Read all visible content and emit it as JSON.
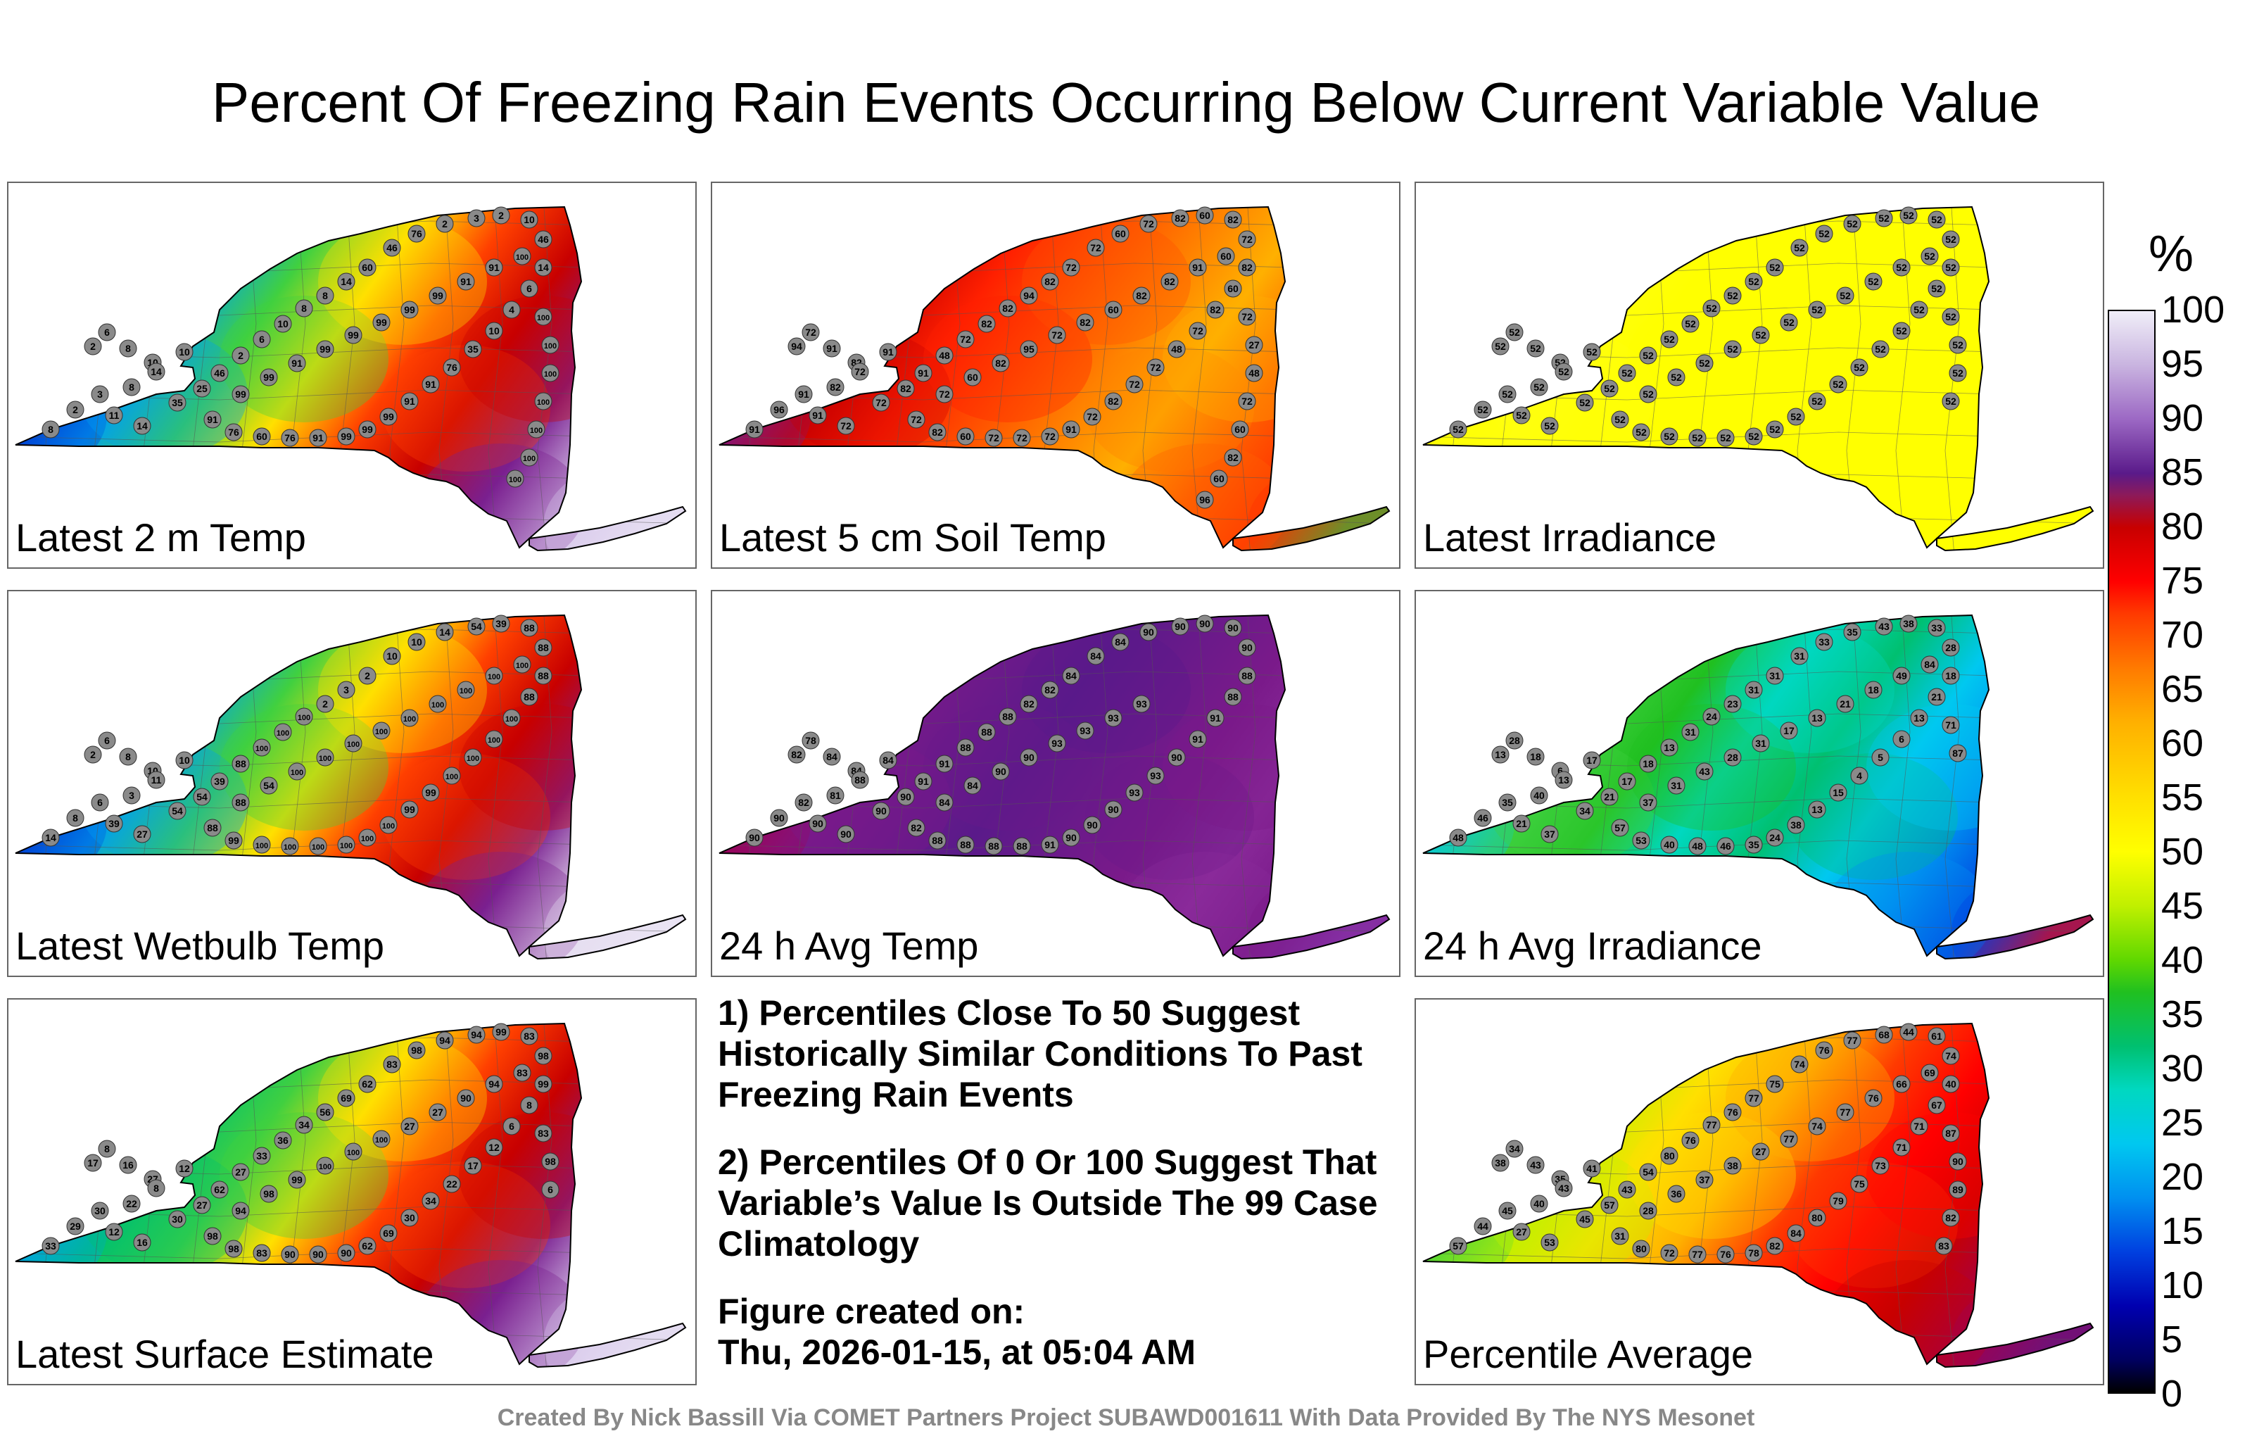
{
  "title": "Percent Of Freezing Rain Events Occurring Below Current Variable Value",
  "panels": [
    {
      "label": "Latest 2 m Temp",
      "fill_stops": [
        "#000070",
        "#0030d0",
        "#00a0f0",
        "#40d040",
        "#ffe000",
        "#ff4000",
        "#c80000",
        "#7a2090",
        "#d8c8ec",
        "#ece6f4"
      ],
      "stations": [
        "6",
        "2",
        "8",
        "10",
        "10",
        "14",
        "8",
        "3",
        "2",
        "8",
        "11",
        "14",
        "35",
        "25",
        "46",
        "2",
        "6",
        "10",
        "8",
        "8",
        "14",
        "60",
        "46",
        "76",
        "2",
        "3",
        "2",
        "10",
        "46",
        "14",
        "6",
        "4",
        "10",
        "35",
        "76",
        "91",
        "91",
        "99",
        "99",
        "99",
        "91",
        "76",
        "60",
        "76",
        "91",
        "99",
        "99",
        "91",
        "99",
        "99",
        "99",
        "99",
        "99",
        "91",
        "91",
        "100",
        "100",
        "100",
        "100",
        "100",
        "100",
        "100",
        "100"
      ]
    },
    {
      "label": "Latest 5 cm Soil Temp",
      "fill_stops": [
        "#5a1a8a",
        "#7a1a8a",
        "#c80000",
        "#ff2000",
        "#ff5000",
        "#ff8000",
        "#ffb000",
        "#ff6000",
        "#ff3000",
        "#20c040"
      ],
      "stations": [
        "72",
        "94",
        "91",
        "82",
        "91",
        "72",
        "82",
        "91",
        "96",
        "91",
        "91",
        "72",
        "72",
        "82",
        "91",
        "48",
        "72",
        "82",
        "82",
        "94",
        "82",
        "72",
        "72",
        "60",
        "72",
        "82",
        "60",
        "82",
        "72",
        "82",
        "60",
        "82",
        "72",
        "48",
        "72",
        "72",
        "82",
        "72",
        "91",
        "72",
        "72",
        "72",
        "60",
        "82",
        "72",
        "72",
        "60",
        "82",
        "95",
        "72",
        "82",
        "60",
        "82",
        "82",
        "91",
        "60",
        "72",
        "27",
        "48",
        "72",
        "60",
        "82",
        "60",
        "96"
      ]
    },
    {
      "label": "Latest Irradiance",
      "fill_stops": [
        "#ffff00",
        "#ffff00",
        "#ffff10",
        "#ffff00",
        "#ffff00",
        "#ffff00",
        "#ffff00",
        "#ffff00",
        "#ffff00",
        "#ffff00"
      ],
      "stations": [
        "52",
        "52",
        "52",
        "52",
        "52",
        "52",
        "52",
        "52",
        "52",
        "52",
        "52",
        "52",
        "52",
        "52",
        "52",
        "52",
        "52",
        "52",
        "52",
        "52",
        "52",
        "52",
        "52",
        "52",
        "52",
        "52",
        "52",
        "52",
        "52",
        "52",
        "52",
        "52",
        "52",
        "52",
        "52",
        "52",
        "52",
        "52",
        "52",
        "52",
        "52",
        "52",
        "52",
        "52",
        "52",
        "52",
        "52",
        "52",
        "52",
        "52",
        "52",
        "52",
        "52",
        "52",
        "52",
        "52",
        "52",
        "52",
        "52",
        "52"
      ]
    },
    {
      "label": "Latest Wetbulb Temp",
      "fill_stops": [
        "#000070",
        "#0030d0",
        "#00a0f0",
        "#40d040",
        "#ffe000",
        "#ff4000",
        "#c80000",
        "#7a2090",
        "#e4dcf0",
        "#ece6f4"
      ],
      "stations": [
        "6",
        "2",
        "8",
        "10",
        "10",
        "11",
        "3",
        "6",
        "8",
        "14",
        "39",
        "27",
        "54",
        "54",
        "39",
        "88",
        "100",
        "100",
        "100",
        "2",
        "3",
        "2",
        "10",
        "10",
        "14",
        "54",
        "39",
        "88",
        "88",
        "88",
        "88",
        "100",
        "100",
        "100",
        "100",
        "99",
        "99",
        "100",
        "100",
        "100",
        "100",
        "100",
        "100",
        "99",
        "88",
        "88",
        "54",
        "100",
        "100",
        "100",
        "100",
        "100",
        "100",
        "100",
        "100",
        "100"
      ]
    },
    {
      "label": "24 h Avg Temp",
      "fill_stops": [
        "#c80000",
        "#a00050",
        "#7a1a8a",
        "#6a1a8a",
        "#5a1a8a",
        "#6a1a8a",
        "#7a1a8a",
        "#8a2a9a",
        "#7a1a8a",
        "#8a3ab0"
      ],
      "stations": [
        "78",
        "82",
        "84",
        "84",
        "84",
        "88",
        "81",
        "82",
        "90",
        "90",
        "90",
        "90",
        "90",
        "90",
        "91",
        "91",
        "88",
        "88",
        "88",
        "82",
        "82",
        "84",
        "84",
        "84",
        "90",
        "90",
        "90",
        "90",
        "90",
        "88",
        "88",
        "91",
        "91",
        "90",
        "93",
        "93",
        "90",
        "90",
        "90",
        "91",
        "88",
        "88",
        "88",
        "88",
        "82",
        "84",
        "84",
        "90",
        "90",
        "93",
        "93",
        "93",
        "93"
      ]
    },
    {
      "label": "24 h Avg Irradiance",
      "fill_stops": [
        "#0040e0",
        "#00c8f0",
        "#40d040",
        "#20c020",
        "#00d8c0",
        "#00c070",
        "#00c8f0",
        "#0090f0",
        "#0040e0",
        "#ff0000"
      ],
      "stations": [
        "28",
        "13",
        "18",
        "6",
        "17",
        "13",
        "40",
        "35",
        "46",
        "48",
        "21",
        "37",
        "34",
        "21",
        "17",
        "18",
        "13",
        "31",
        "24",
        "23",
        "31",
        "31",
        "31",
        "33",
        "35",
        "43",
        "38",
        "33",
        "28",
        "18",
        "21",
        "13",
        "6",
        "5",
        "4",
        "15",
        "13",
        "38",
        "24",
        "35",
        "46",
        "48",
        "40",
        "53",
        "57",
        "37",
        "31",
        "43",
        "28",
        "31",
        "17",
        "13",
        "21",
        "18",
        "49",
        "84",
        "71",
        "87"
      ]
    },
    {
      "label": "Latest Surface Estimate",
      "fill_stops": [
        "#0030d0",
        "#00a0f0",
        "#00c070",
        "#40d040",
        "#ffe000",
        "#ff4000",
        "#c80000",
        "#7a2090",
        "#d8c8ec",
        "#ece6f4"
      ],
      "stations": [
        "8",
        "17",
        "16",
        "27",
        "12",
        "8",
        "22",
        "30",
        "29",
        "33",
        "12",
        "16",
        "30",
        "27",
        "62",
        "27",
        "33",
        "36",
        "34",
        "56",
        "69",
        "62",
        "83",
        "98",
        "94",
        "94",
        "99",
        "83",
        "98",
        "99",
        "8",
        "6",
        "12",
        "17",
        "22",
        "34",
        "30",
        "69",
        "62",
        "90",
        "90",
        "90",
        "83",
        "98",
        "98",
        "94",
        "98",
        "99",
        "100",
        "100",
        "100",
        "27",
        "27",
        "90",
        "94",
        "83",
        "83",
        "98",
        "6"
      ]
    },
    {
      "label": "Percentile Average",
      "fill_stops": [
        "#20c020",
        "#40d040",
        "#c0f000",
        "#ffe000",
        "#ffb000",
        "#ff3a00",
        "#ff0000",
        "#c80000",
        "#a00050",
        "#5a1a8a"
      ],
      "stations": [
        "34",
        "38",
        "43",
        "35",
        "41",
        "43",
        "40",
        "45",
        "44",
        "57",
        "27",
        "53",
        "45",
        "57",
        "43",
        "54",
        "80",
        "76",
        "77",
        "76",
        "77",
        "75",
        "74",
        "76",
        "77",
        "68",
        "44",
        "61",
        "74",
        "40",
        "67",
        "71",
        "71",
        "73",
        "75",
        "79",
        "80",
        "84",
        "82",
        "78",
        "76",
        "77",
        "72",
        "80",
        "31",
        "28",
        "36",
        "37",
        "38",
        "27",
        "77",
        "74",
        "77",
        "76",
        "66",
        "69",
        "87",
        "90",
        "89",
        "82",
        "83"
      ]
    }
  ],
  "notes": {
    "note1": "1) Percentiles Close To 50 Suggest Historically Similar Conditions To Past Freezing Rain Events",
    "note2": "2) Percentiles Of 0 Or 100 Suggest That Variable’s Value Is Outside The 99 Case Climatology",
    "figure_created_label": "Figure created on:",
    "figure_created_date": "Thu, 2026-01-15, at 05:04 AM"
  },
  "colorbar": {
    "unit": "%",
    "ticks": [
      "100",
      "95",
      "90",
      "85",
      "80",
      "75",
      "70",
      "65",
      "60",
      "55",
      "50",
      "45",
      "40",
      "35",
      "30",
      "25",
      "20",
      "15",
      "10",
      "5",
      "0"
    ]
  },
  "credit": "Created By Nick Bassill Via COMET Partners Project SUBAWD001611 With Data Provided By The NYS Mesonet"
}
